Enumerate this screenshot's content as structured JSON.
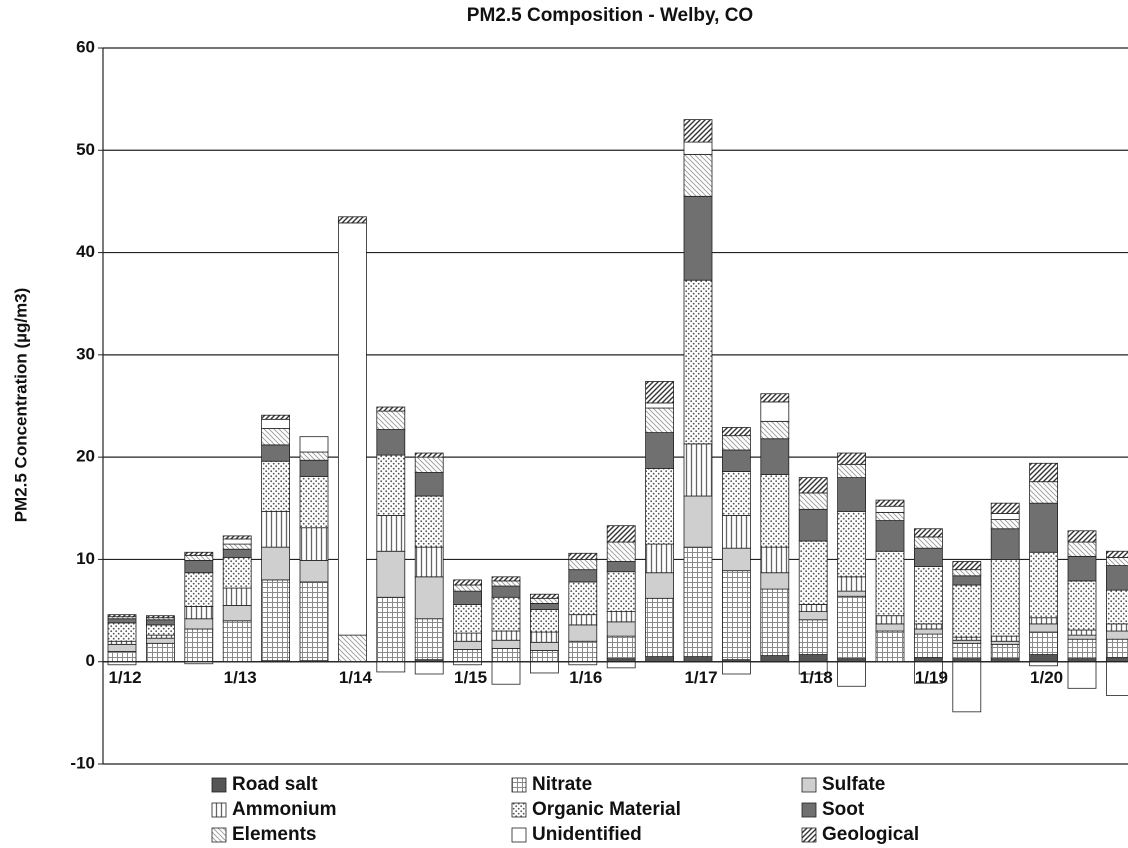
{
  "chart_data": {
    "type": "bar",
    "stacked": true,
    "title": "PM2.5 Composition - Welby, CO",
    "y_label": "PM2.5 Concentration (µg/m3)",
    "categories": [
      "1/12",
      null,
      null,
      "1/13",
      null,
      null,
      "1/14",
      null,
      null,
      "1/15",
      null,
      null,
      "1/16",
      null,
      null,
      "1/17",
      null,
      null,
      "1/18",
      null,
      null,
      "1/19",
      null,
      null,
      "1/20",
      null,
      null
    ],
    "ylim": [
      -10,
      60
    ],
    "yticks": [
      -10,
      0,
      10,
      20,
      30,
      40,
      50,
      60
    ],
    "grid": true,
    "series": [
      {
        "name": "Road salt",
        "color": "#555555",
        "pattern": "solid",
        "values": [
          0,
          0,
          0,
          0,
          0.1,
          0.1,
          0,
          0,
          0.2,
          0,
          0,
          0,
          0,
          0.3,
          0.5,
          0.5,
          0.2,
          0.6,
          0.7,
          0.3,
          0,
          0.4,
          0.3,
          0.3,
          0.7,
          0.3,
          0.4
        ]
      },
      {
        "name": "Nitrate",
        "color": "#8a8a8a",
        "pattern": "grid",
        "values": [
          1.0,
          1.8,
          3.2,
          4.0,
          7.9,
          7.7,
          0,
          6.3,
          4.0,
          1.2,
          1.3,
          1.1,
          2.0,
          2.2,
          5.7,
          10.7,
          8.7,
          6.5,
          3.4,
          6.1,
          3.0,
          2.3,
          1.5,
          1.4,
          2.2,
          1.9,
          1.8
        ]
      },
      {
        "name": "Sulfate",
        "color": "#cfcfcf",
        "pattern": "solid",
        "values": [
          0.7,
          0.5,
          1.0,
          1.5,
          3.2,
          2.1,
          0,
          4.5,
          4.1,
          0.8,
          0.8,
          0.8,
          1.6,
          1.4,
          2.5,
          5.0,
          2.2,
          1.6,
          0.8,
          0.5,
          0.7,
          0.5,
          0.3,
          0.3,
          0.8,
          0.4,
          0.8
        ]
      },
      {
        "name": "Ammonium",
        "color": "#666666",
        "pattern": "vlines",
        "values": [
          0.3,
          0.3,
          1.2,
          1.7,
          3.5,
          3.2,
          0,
          3.5,
          2.9,
          0.8,
          0.9,
          1.0,
          1.0,
          1.0,
          2.8,
          5.1,
          3.2,
          2.5,
          0.7,
          1.4,
          0.8,
          0.5,
          0.3,
          0.5,
          0.6,
          0.5,
          0.7
        ]
      },
      {
        "name": "Organic Material",
        "color": "#555555",
        "pattern": "dots",
        "values": [
          1.8,
          1.0,
          3.3,
          3.0,
          4.9,
          5.0,
          0,
          5.9,
          5.0,
          2.8,
          3.3,
          2.2,
          3.2,
          3.9,
          7.4,
          16.0,
          4.3,
          7.1,
          6.2,
          6.4,
          6.3,
          5.6,
          5.1,
          7.5,
          6.4,
          4.8,
          3.3
        ]
      },
      {
        "name": "Soot",
        "color": "#707070",
        "pattern": "solid",
        "values": [
          0.4,
          0.5,
          1.2,
          0.8,
          1.6,
          1.6,
          0,
          2.5,
          2.3,
          1.3,
          1.1,
          0.6,
          1.2,
          1.0,
          3.5,
          8.2,
          2.1,
          3.5,
          3.1,
          3.3,
          3.0,
          1.8,
          0.9,
          3.0,
          4.8,
          2.4,
          2.4
        ]
      },
      {
        "name": "Elements",
        "color": "#999999",
        "pattern": "bslash",
        "values": [
          0.2,
          0.2,
          0.5,
          0.5,
          1.6,
          0.8,
          2.6,
          1.8,
          1.5,
          0.6,
          0.5,
          0.5,
          1.0,
          1.9,
          2.4,
          4.1,
          1.4,
          1.7,
          1.6,
          1.3,
          0.8,
          1.1,
          0.6,
          0.9,
          2.1,
          1.4,
          0.8
        ]
      },
      {
        "name": "Unidentified",
        "color": "#ffffff",
        "pattern": "solid",
        "values": [
          -0.3,
          0,
          -0.2,
          0.5,
          0.9,
          1.5,
          40.3,
          -1.0,
          -1.2,
          -0.3,
          -2.2,
          -1.1,
          -0.3,
          -0.6,
          0.5,
          1.2,
          -1.2,
          1.9,
          -1.2,
          -2.4,
          0.6,
          -2.1,
          -4.9,
          0.6,
          -0.4,
          -2.6,
          -3.3
        ]
      },
      {
        "name": "Geological",
        "color": "#333333",
        "pattern": "slash",
        "values": [
          0.2,
          0.2,
          0.3,
          0.3,
          0.4,
          0,
          0.6,
          0.4,
          0.4,
          0.5,
          0.4,
          0.4,
          0.6,
          1.6,
          2.1,
          2.2,
          0.8,
          0.8,
          1.5,
          1.1,
          0.6,
          0.8,
          0.8,
          1.0,
          1.8,
          1.1,
          0.6
        ]
      }
    ]
  }
}
